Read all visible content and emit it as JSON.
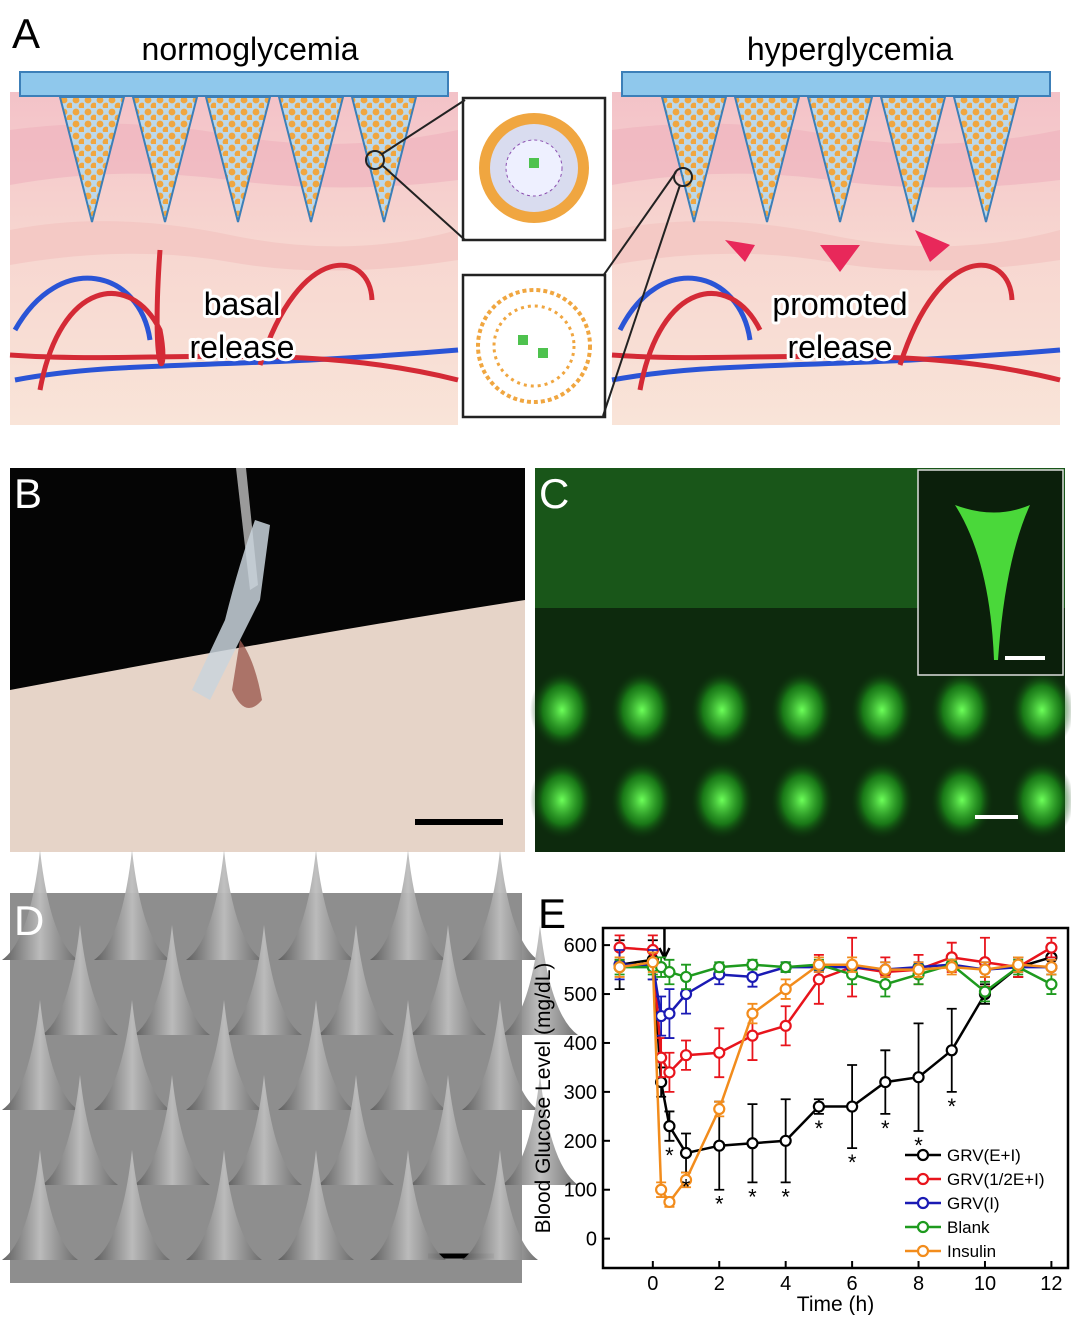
{
  "panel_a": {
    "label": "A",
    "left_title": "normoglycemia",
    "right_title": "hyperglycemia",
    "left_caption": [
      "basal",
      "release"
    ],
    "right_caption": [
      "promoted",
      "release"
    ]
  },
  "panel_b": {
    "label": "B"
  },
  "panel_c": {
    "label": "C"
  },
  "panel_d": {
    "label": "D"
  },
  "chart_data": {
    "type": "line",
    "label": "E",
    "x_label": "Time (h)",
    "y_label": "Blood Glucose Level (mg/dL)",
    "x": [
      -1,
      0,
      0.25,
      0.5,
      1,
      2,
      3,
      4,
      5,
      6,
      7,
      8,
      9,
      10,
      11,
      12
    ],
    "xlim": [
      -1.5,
      12.5
    ],
    "ylim": [
      -60,
      635
    ],
    "xticks": [
      0,
      2,
      4,
      6,
      8,
      10,
      12
    ],
    "yticks": [
      0,
      100,
      200,
      300,
      400,
      500,
      600
    ],
    "legend": "lower right",
    "series": [
      {
        "name": "GRV(E+I)",
        "color": "#000000",
        "values": [
          560,
          570,
          320,
          230,
          175,
          190,
          195,
          200,
          270,
          270,
          320,
          330,
          385,
          500,
          555,
          575
        ],
        "errors": [
          50,
          40,
          30,
          30,
          40,
          90,
          80,
          85,
          15,
          85,
          65,
          110,
          85,
          20,
          20,
          20
        ]
      },
      {
        "name": "GRV(1/2E+I)",
        "color": "#e8141c",
        "values": [
          595,
          590,
          370,
          340,
          375,
          380,
          415,
          435,
          530,
          555,
          545,
          550,
          575,
          565,
          555,
          595
        ],
        "errors": [
          25,
          30,
          40,
          40,
          30,
          50,
          50,
          40,
          50,
          60,
          30,
          30,
          30,
          50,
          20,
          20
        ]
      },
      {
        "name": "GRV(I)",
        "color": "#1a1ab4",
        "values": [
          560,
          560,
          455,
          460,
          500,
          540,
          535,
          555,
          555,
          555,
          550,
          555,
          560,
          550,
          555,
          555
        ],
        "errors": [
          30,
          30,
          40,
          50,
          40,
          20,
          20,
          10,
          10,
          10,
          15,
          10,
          10,
          15,
          10,
          15
        ]
      },
      {
        "name": "Blank",
        "color": "#1e9a1e",
        "values": [
          555,
          555,
          555,
          545,
          535,
          555,
          560,
          555,
          560,
          540,
          520,
          540,
          560,
          505,
          555,
          520
        ],
        "errors": [
          15,
          15,
          20,
          25,
          25,
          10,
          10,
          10,
          10,
          20,
          25,
          20,
          10,
          20,
          15,
          20
        ]
      },
      {
        "name": "Insulin",
        "color": "#f28c1c",
        "values": [
          555,
          565,
          100,
          75,
          120,
          265,
          460,
          510,
          560,
          560,
          550,
          550,
          555,
          550,
          560,
          555
        ],
        "errors": [
          20,
          20,
          15,
          10,
          15,
          15,
          20,
          20,
          15,
          15,
          15,
          15,
          15,
          15,
          15,
          15
        ]
      }
    ],
    "annotation": {
      "text": "*",
      "x": [
        0.5,
        1,
        2,
        3,
        4,
        5,
        6,
        7,
        8,
        9
      ]
    }
  }
}
